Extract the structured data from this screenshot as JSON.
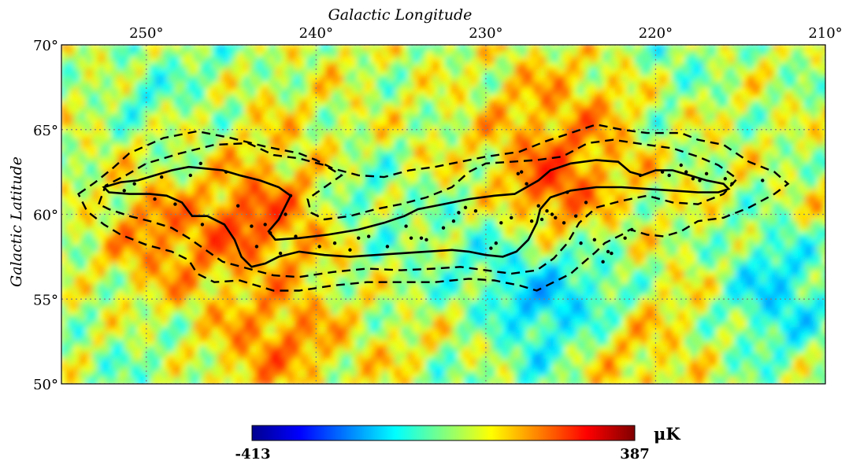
{
  "chart_data": {
    "type": "heatmap",
    "title": "",
    "xlabel": "Galactic Longitude",
    "ylabel": "Galactic Latitude",
    "xlim": [
      255,
      210
    ],
    "ylim": [
      50,
      70
    ],
    "x_ticks": [
      {
        "value": 250,
        "label": "250°"
      },
      {
        "value": 240,
        "label": "240°"
      },
      {
        "value": 230,
        "label": "230°"
      },
      {
        "value": 220,
        "label": "220°"
      },
      {
        "value": 210,
        "label": "210°"
      }
    ],
    "y_ticks": [
      {
        "value": 70,
        "label": "70°"
      },
      {
        "value": 65,
        "label": "65°"
      },
      {
        "value": 60,
        "label": "60°"
      },
      {
        "value": 55,
        "label": "55°"
      },
      {
        "value": 50,
        "label": "50°"
      }
    ],
    "grid": true,
    "colormap": "jet",
    "colorbar": {
      "min": -413,
      "max": 387,
      "min_label": "-413",
      "max_label": "387",
      "unit": "μK"
    },
    "solid_contour": [
      [
        252.5,
        61.6
      ],
      [
        251.5,
        61.9
      ],
      [
        250.5,
        62.0
      ],
      [
        249.5,
        62.3
      ],
      [
        248.5,
        62.6
      ],
      [
        247.5,
        62.8
      ],
      [
        246.5,
        62.7
      ],
      [
        245.5,
        62.6
      ],
      [
        244.5,
        62.3
      ],
      [
        243.3,
        62.0
      ],
      [
        242.2,
        61.6
      ],
      [
        241.5,
        61.1
      ],
      [
        241.8,
        60.5
      ],
      [
        242.2,
        59.7
      ],
      [
        242.8,
        59.0
      ],
      [
        242.4,
        58.5
      ],
      [
        241.0,
        58.6
      ],
      [
        239.3,
        58.8
      ],
      [
        237.5,
        59.1
      ],
      [
        236.0,
        59.5
      ],
      [
        234.8,
        59.9
      ],
      [
        234.0,
        60.3
      ],
      [
        232.5,
        60.6
      ],
      [
        231.0,
        60.9
      ],
      [
        229.5,
        61.1
      ],
      [
        228.3,
        61.2
      ],
      [
        227.6,
        61.6
      ],
      [
        226.9,
        62.0
      ],
      [
        226.2,
        62.6
      ],
      [
        225.0,
        63.0
      ],
      [
        223.5,
        63.2
      ],
      [
        222.2,
        63.1
      ],
      [
        221.5,
        62.5
      ],
      [
        220.8,
        62.3
      ],
      [
        220.0,
        62.6
      ],
      [
        219.0,
        62.6
      ],
      [
        218.0,
        62.3
      ],
      [
        217.0,
        62.0
      ],
      [
        216.0,
        61.8
      ],
      [
        215.7,
        61.5
      ],
      [
        216.3,
        61.3
      ],
      [
        217.5,
        61.3
      ],
      [
        219.0,
        61.4
      ],
      [
        220.5,
        61.5
      ],
      [
        222.0,
        61.6
      ],
      [
        223.5,
        61.6
      ],
      [
        225.0,
        61.4
      ],
      [
        226.2,
        61.0
      ],
      [
        226.8,
        60.3
      ],
      [
        227.0,
        59.5
      ],
      [
        227.5,
        58.5
      ],
      [
        228.2,
        57.8
      ],
      [
        229.0,
        57.5
      ],
      [
        230.0,
        57.6
      ],
      [
        231.0,
        57.8
      ],
      [
        232.0,
        57.9
      ],
      [
        233.5,
        57.8
      ],
      [
        235.0,
        57.7
      ],
      [
        236.5,
        57.6
      ],
      [
        238.0,
        57.5
      ],
      [
        239.5,
        57.6
      ],
      [
        241.0,
        57.8
      ],
      [
        242.2,
        57.5
      ],
      [
        243.0,
        57.1
      ],
      [
        243.8,
        56.9
      ],
      [
        244.4,
        57.5
      ],
      [
        244.8,
        58.5
      ],
      [
        245.4,
        59.4
      ],
      [
        246.4,
        59.9
      ],
      [
        247.3,
        59.9
      ],
      [
        247.9,
        60.7
      ],
      [
        248.8,
        61.1
      ],
      [
        249.8,
        61.2
      ],
      [
        251.0,
        61.2
      ],
      [
        252.2,
        61.3
      ],
      [
        252.5,
        61.6
      ]
    ],
    "dashed_contour_outer": [
      [
        254.0,
        61.2
      ],
      [
        253.0,
        61.9
      ],
      [
        252.0,
        62.7
      ],
      [
        251.0,
        63.6
      ],
      [
        249.0,
        64.5
      ],
      [
        247.0,
        64.9
      ],
      [
        245.0,
        64.5
      ],
      [
        243.0,
        64.0
      ],
      [
        241.0,
        63.6
      ],
      [
        240.0,
        63.2
      ],
      [
        239.0,
        62.7
      ],
      [
        237.5,
        62.3
      ],
      [
        236.0,
        62.2
      ],
      [
        234.5,
        62.6
      ],
      [
        233.0,
        62.8
      ],
      [
        231.5,
        63.1
      ],
      [
        230.0,
        63.4
      ],
      [
        228.0,
        63.7
      ],
      [
        226.5,
        64.3
      ],
      [
        225.0,
        64.8
      ],
      [
        223.5,
        65.3
      ],
      [
        222.0,
        65.0
      ],
      [
        220.5,
        64.8
      ],
      [
        218.5,
        64.8
      ],
      [
        217.5,
        64.4
      ],
      [
        216.0,
        64.1
      ],
      [
        214.5,
        63.1
      ],
      [
        213.0,
        62.5
      ],
      [
        212.2,
        61.8
      ],
      [
        213.0,
        61.2
      ],
      [
        214.5,
        60.4
      ],
      [
        216.0,
        59.8
      ],
      [
        217.5,
        59.6
      ],
      [
        218.5,
        59.0
      ],
      [
        219.5,
        58.7
      ],
      [
        220.5,
        58.8
      ],
      [
        221.5,
        59.1
      ],
      [
        222.0,
        58.8
      ],
      [
        223.0,
        58.3
      ],
      [
        223.5,
        57.8
      ],
      [
        224.2,
        57.2
      ],
      [
        225.0,
        56.5
      ],
      [
        226.0,
        56.0
      ],
      [
        227.0,
        55.5
      ],
      [
        228.0,
        55.8
      ],
      [
        229.5,
        56.1
      ],
      [
        231.0,
        56.2
      ],
      [
        233.0,
        56.0
      ],
      [
        235.0,
        56.0
      ],
      [
        237.0,
        56.0
      ],
      [
        239.0,
        55.8
      ],
      [
        241.0,
        55.5
      ],
      [
        242.5,
        55.5
      ],
      [
        243.5,
        55.8
      ],
      [
        244.5,
        56.1
      ],
      [
        246.0,
        56.0
      ],
      [
        247.0,
        56.5
      ],
      [
        247.5,
        57.3
      ],
      [
        248.5,
        57.8
      ],
      [
        250.0,
        58.2
      ],
      [
        251.5,
        58.8
      ],
      [
        252.5,
        59.4
      ],
      [
        253.5,
        60.2
      ],
      [
        254.0,
        61.2
      ]
    ],
    "dashed_contour_inner": [
      [
        252.8,
        60.6
      ],
      [
        252.4,
        61.7
      ],
      [
        251.2,
        62.3
      ],
      [
        250.0,
        63.0
      ],
      [
        248.0,
        63.6
      ],
      [
        246.0,
        64.1
      ],
      [
        244.0,
        64.2
      ],
      [
        242.5,
        63.5
      ],
      [
        241.0,
        63.3
      ],
      [
        239.5,
        62.9
      ],
      [
        238.5,
        62.3
      ],
      [
        239.5,
        61.6
      ],
      [
        240.5,
        60.9
      ],
      [
        240.3,
        60.1
      ],
      [
        239.5,
        59.7
      ],
      [
        238.0,
        59.9
      ],
      [
        236.5,
        60.3
      ],
      [
        235.0,
        60.6
      ],
      [
        233.5,
        61.0
      ],
      [
        232.0,
        61.6
      ],
      [
        231.0,
        62.5
      ],
      [
        230.0,
        63.0
      ],
      [
        228.5,
        63.1
      ],
      [
        227.0,
        63.2
      ],
      [
        225.5,
        63.4
      ],
      [
        224.0,
        64.2
      ],
      [
        222.5,
        64.4
      ],
      [
        220.5,
        64.1
      ],
      [
        219.0,
        63.9
      ],
      [
        217.5,
        63.4
      ],
      [
        216.3,
        62.9
      ],
      [
        215.2,
        62.1
      ],
      [
        216.0,
        61.2
      ],
      [
        217.5,
        60.6
      ],
      [
        219.0,
        60.7
      ],
      [
        220.5,
        61.1
      ],
      [
        222.0,
        60.8
      ],
      [
        223.5,
        60.4
      ],
      [
        224.5,
        59.5
      ],
      [
        225.2,
        58.3
      ],
      [
        226.0,
        57.4
      ],
      [
        227.0,
        56.7
      ],
      [
        228.5,
        56.5
      ],
      [
        230.0,
        56.7
      ],
      [
        231.5,
        56.9
      ],
      [
        233.0,
        56.8
      ],
      [
        235.0,
        56.7
      ],
      [
        237.0,
        56.8
      ],
      [
        239.0,
        56.6
      ],
      [
        241.0,
        56.3
      ],
      [
        242.5,
        56.4
      ],
      [
        244.0,
        56.8
      ],
      [
        245.5,
        57.2
      ],
      [
        246.5,
        57.9
      ],
      [
        247.5,
        58.6
      ],
      [
        248.5,
        59.2
      ],
      [
        249.8,
        59.6
      ],
      [
        251.0,
        59.9
      ],
      [
        252.2,
        60.3
      ],
      [
        252.8,
        60.6
      ]
    ],
    "dots": [
      [
        251.3,
        61.4
      ],
      [
        250.7,
        61.8
      ],
      [
        249.5,
        60.9
      ],
      [
        249.1,
        62.2
      ],
      [
        248.3,
        60.6
      ],
      [
        247.4,
        62.3
      ],
      [
        246.8,
        63.0
      ],
      [
        246.7,
        59.4
      ],
      [
        245.3,
        62.5
      ],
      [
        244.6,
        60.5
      ],
      [
        243.8,
        59.3
      ],
      [
        243.5,
        58.1
      ],
      [
        243.0,
        59.4
      ],
      [
        242.7,
        58.9
      ],
      [
        242.1,
        57.7
      ],
      [
        241.5,
        61.1
      ],
      [
        241.8,
        60.0
      ],
      [
        241.2,
        58.7
      ],
      [
        239.8,
        58.1
      ],
      [
        238.9,
        58.3
      ],
      [
        238.0,
        57.9
      ],
      [
        237.5,
        58.6
      ],
      [
        236.9,
        58.7
      ],
      [
        235.8,
        58.1
      ],
      [
        234.7,
        59.3
      ],
      [
        234.4,
        58.6
      ],
      [
        233.8,
        58.6
      ],
      [
        233.5,
        58.5
      ],
      [
        232.5,
        59.2
      ],
      [
        231.9,
        59.6
      ],
      [
        231.6,
        60.1
      ],
      [
        231.2,
        60.4
      ],
      [
        230.6,
        60.2
      ],
      [
        229.7,
        58.0
      ],
      [
        229.4,
        58.3
      ],
      [
        229.1,
        59.5
      ],
      [
        228.5,
        59.8
      ],
      [
        228.1,
        62.4
      ],
      [
        227.9,
        62.5
      ],
      [
        227.6,
        61.8
      ],
      [
        227.3,
        59.6
      ],
      [
        226.9,
        60.5
      ],
      [
        226.7,
        59.7
      ],
      [
        226.4,
        60.2
      ],
      [
        226.1,
        60.0
      ],
      [
        225.9,
        59.8
      ],
      [
        225.4,
        59.5
      ],
      [
        225.2,
        61.3
      ],
      [
        224.7,
        59.9
      ],
      [
        224.4,
        58.3
      ],
      [
        224.1,
        60.7
      ],
      [
        223.6,
        58.5
      ],
      [
        223.1,
        57.2
      ],
      [
        222.8,
        57.8
      ],
      [
        222.6,
        57.7
      ],
      [
        221.8,
        58.6
      ],
      [
        221.4,
        59.1
      ],
      [
        220.9,
        62.3
      ],
      [
        219.6,
        62.5
      ],
      [
        219.2,
        62.3
      ],
      [
        218.5,
        62.9
      ],
      [
        218.2,
        62.5
      ],
      [
        217.8,
        62.1
      ],
      [
        217.4,
        62.0
      ],
      [
        217.0,
        62.4
      ],
      [
        215.9,
        62.1
      ],
      [
        215.5,
        61.8
      ],
      [
        213.7,
        62.0
      ]
    ]
  }
}
